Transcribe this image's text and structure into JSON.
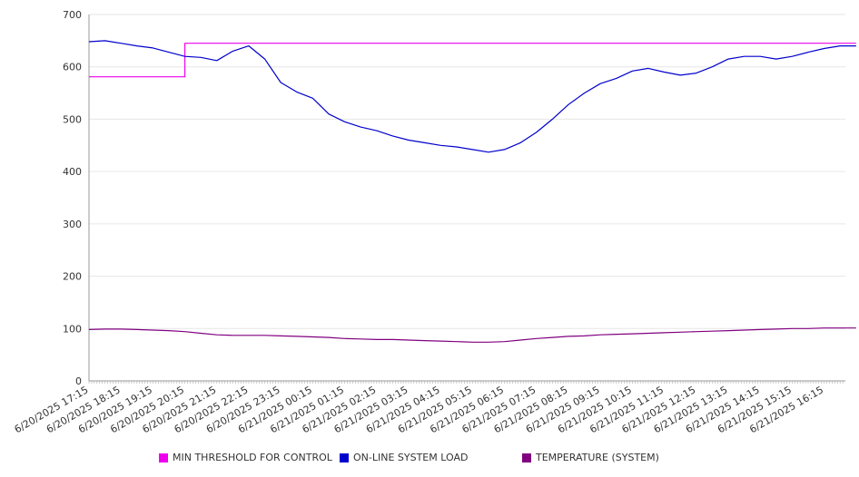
{
  "chart_data": {
    "type": "line",
    "title": "",
    "xlabel": "",
    "ylabel": "",
    "ylim": [
      0,
      700
    ],
    "y_ticks": [
      0,
      100,
      200,
      300,
      400,
      500,
      600,
      700
    ],
    "grid": true,
    "legend_position": "bottom",
    "x_tick_labels": [
      "6/20/2025 17:15",
      "6/20/2025 18:15",
      "6/20/2025 19:15",
      "6/20/2025 20:15",
      "6/20/2025 21:15",
      "6/20/2025 22:15",
      "6/20/2025 23:15",
      "6/21/2025 00:15",
      "6/21/2025 01:15",
      "6/21/2025 02:15",
      "6/21/2025 03:15",
      "6/21/2025 04:15",
      "6/21/2025 05:15",
      "6/21/2025 06:15",
      "6/21/2025 07:15",
      "6/21/2025 08:15",
      "6/21/2025 09:15",
      "6/21/2025 10:15",
      "6/21/2025 11:15",
      "6/21/2025 12:15",
      "6/21/2025 13:15",
      "6/21/2025 14:15",
      "6/21/2025 15:15",
      "6/21/2025 16:15"
    ],
    "x": [
      "6/20/2025 17:15",
      "6/20/2025 17:45",
      "6/20/2025 18:15",
      "6/20/2025 18:45",
      "6/20/2025 19:15",
      "6/20/2025 19:45",
      "6/20/2025 20:15",
      "6/20/2025 20:45",
      "6/20/2025 21:15",
      "6/20/2025 21:45",
      "6/20/2025 22:15",
      "6/20/2025 22:45",
      "6/20/2025 23:15",
      "6/20/2025 23:45",
      "6/21/2025 00:15",
      "6/21/2025 00:45",
      "6/21/2025 01:15",
      "6/21/2025 01:45",
      "6/21/2025 02:15",
      "6/21/2025 02:45",
      "6/21/2025 03:15",
      "6/21/2025 03:45",
      "6/21/2025 04:15",
      "6/21/2025 04:45",
      "6/21/2025 05:15",
      "6/21/2025 05:45",
      "6/21/2025 06:15",
      "6/21/2025 06:45",
      "6/21/2025 07:15",
      "6/21/2025 07:45",
      "6/21/2025 08:15",
      "6/21/2025 08:45",
      "6/21/2025 09:15",
      "6/21/2025 09:45",
      "6/21/2025 10:15",
      "6/21/2025 10:45",
      "6/21/2025 11:15",
      "6/21/2025 11:45",
      "6/21/2025 12:15",
      "6/21/2025 12:45",
      "6/21/2025 13:15",
      "6/21/2025 13:45",
      "6/21/2025 14:15",
      "6/21/2025 14:45",
      "6/21/2025 15:15",
      "6/21/2025 15:45",
      "6/21/2025 16:15",
      "6/21/2025 16:45",
      "6/21/2025 17:15"
    ],
    "series": [
      {
        "name": "MIN THRESHOLD FOR CONTROL",
        "color": "#ee00ee",
        "values": [
          581,
          581,
          581,
          581,
          581,
          581,
          645,
          645,
          645,
          645,
          645,
          645,
          645,
          645,
          645,
          645,
          645,
          645,
          645,
          645,
          645,
          645,
          645,
          645,
          645,
          645,
          645,
          645,
          645,
          645,
          645,
          645,
          645,
          645,
          645,
          645,
          645,
          645,
          645,
          645,
          645,
          645,
          645,
          645,
          645,
          645,
          645,
          645,
          645
        ]
      },
      {
        "name": "ON-LINE SYSTEM LOAD",
        "color": "#0000cc",
        "values": [
          648,
          650,
          645,
          640,
          636,
          628,
          620,
          618,
          612,
          630,
          640,
          615,
          570,
          552,
          540,
          510,
          495,
          485,
          478,
          468,
          460,
          455,
          450,
          447,
          442,
          437,
          442,
          455,
          475,
          500,
          528,
          550,
          568,
          578,
          592,
          597,
          590,
          584,
          588,
          600,
          615,
          620,
          620,
          615,
          620,
          628,
          635,
          640,
          640
        ]
      },
      {
        "name": "TEMPERATURE (SYSTEM)",
        "color": "#800080",
        "values": [
          98,
          99,
          99,
          98,
          97,
          96,
          94,
          91,
          88,
          87,
          87,
          87,
          86,
          85,
          84,
          83,
          81,
          80,
          79,
          79,
          78,
          77,
          76,
          75,
          74,
          74,
          75,
          78,
          81,
          83,
          85,
          86,
          88,
          89,
          90,
          91,
          92,
          93,
          94,
          95,
          96,
          97,
          98,
          99,
          100,
          100,
          101,
          101,
          101
        ]
      }
    ]
  }
}
